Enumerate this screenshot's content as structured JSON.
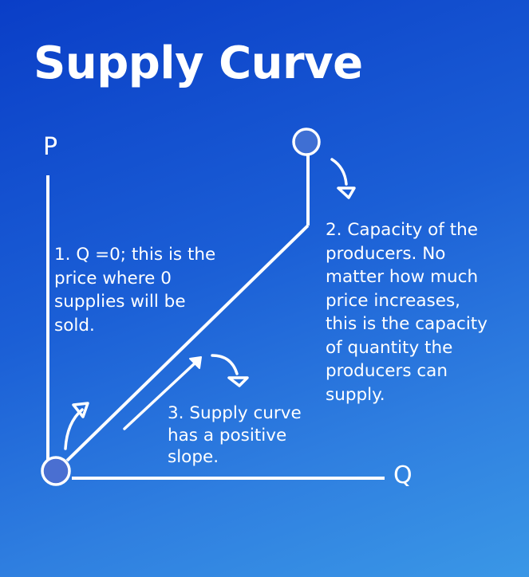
{
  "title": "Supply Curve",
  "axes": {
    "y_label": "P",
    "x_label": "Q"
  },
  "annotations": {
    "note1": [
      "1. Q =0; this is the",
      "price where 0",
      "supplies will be",
      "sold."
    ],
    "note2": [
      "2. Capacity of the",
      "producers. No",
      "matter how much",
      "price increases,",
      "this is the capacity",
      "of quantity the",
      "producers can",
      "supply."
    ],
    "note3": [
      "3. Supply curve",
      "has a positive",
      "slope."
    ]
  },
  "colors": {
    "line": "#ffffff",
    "origin_point_fill": "#4a6fd1",
    "endpoint_fill": "#3f6fd3"
  }
}
